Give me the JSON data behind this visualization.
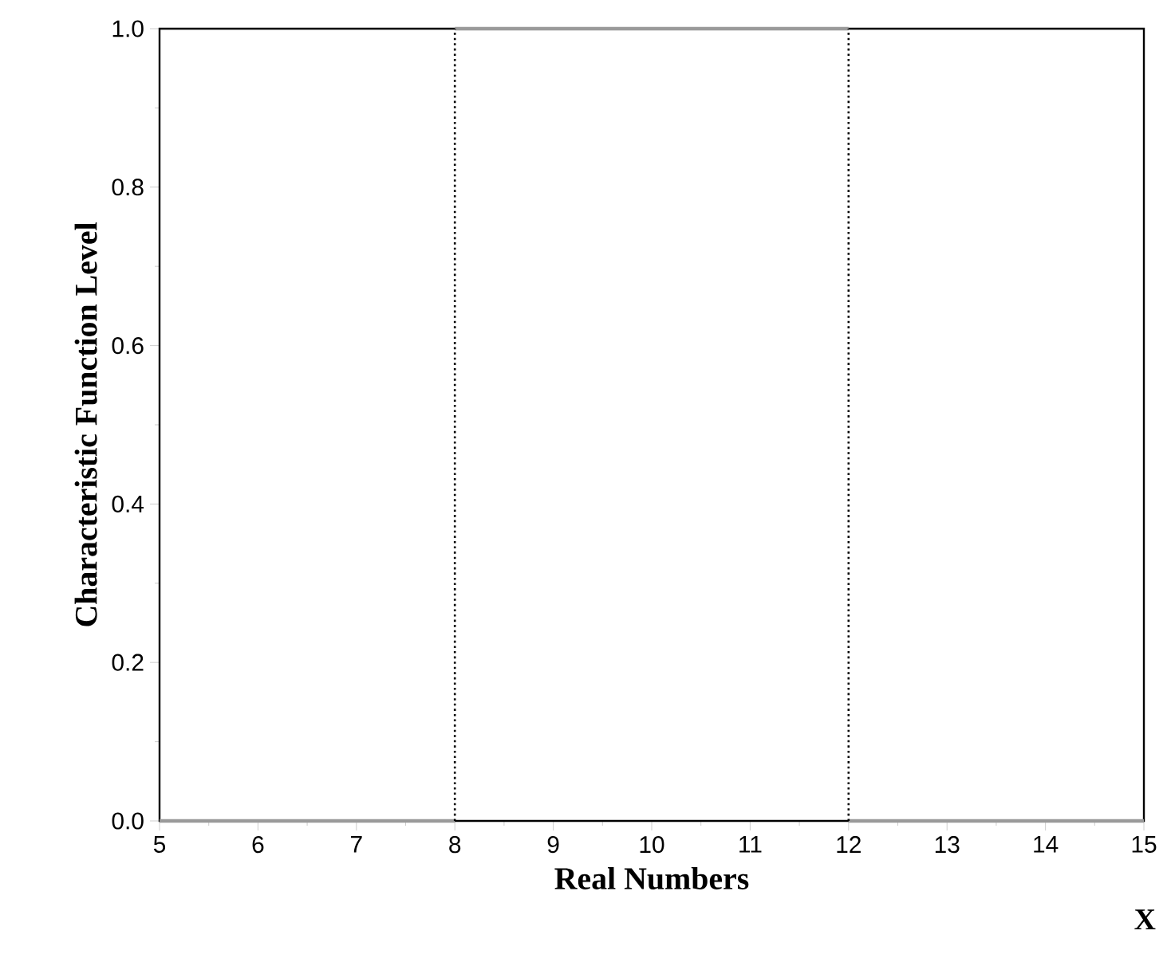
{
  "chart_data": {
    "type": "line",
    "xlabel": "Real  Numbers",
    "ylabel": "Characteristic  Function  Level",
    "annotations": [
      "X"
    ],
    "series": [
      {
        "color": "#9a9a9a",
        "x": [
          5,
          8
        ],
        "values": [
          0,
          0
        ]
      },
      {
        "color": "#9a9a9a",
        "x": [
          8,
          12
        ],
        "values": [
          1,
          1
        ]
      },
      {
        "color": "#9a9a9a",
        "x": [
          12,
          15
        ],
        "values": [
          0,
          0
        ]
      }
    ],
    "xlim": [
      5,
      15
    ],
    "ylim": [
      0,
      1
    ],
    "xticks": [
      5,
      6,
      7,
      8,
      9,
      10,
      11,
      12,
      13,
      14,
      15
    ],
    "yticks": [
      {
        "value": 0,
        "label": "0.0"
      },
      {
        "value": 0.2,
        "label": "0.2"
      },
      {
        "value": 0.4,
        "label": "0.4"
      },
      {
        "value": 0.6,
        "label": "0.6"
      },
      {
        "value": 0.8,
        "label": "0.8"
      },
      {
        "value": 1,
        "label": "1.0"
      }
    ],
    "ref_lines": [
      {
        "axis": "x",
        "value": 8,
        "color": "#000000",
        "line_style": "dotted"
      },
      {
        "axis": "x",
        "value": 12,
        "color": "#000000",
        "line_style": "dotted"
      }
    ],
    "marker": "none",
    "line_style": "solid"
  }
}
